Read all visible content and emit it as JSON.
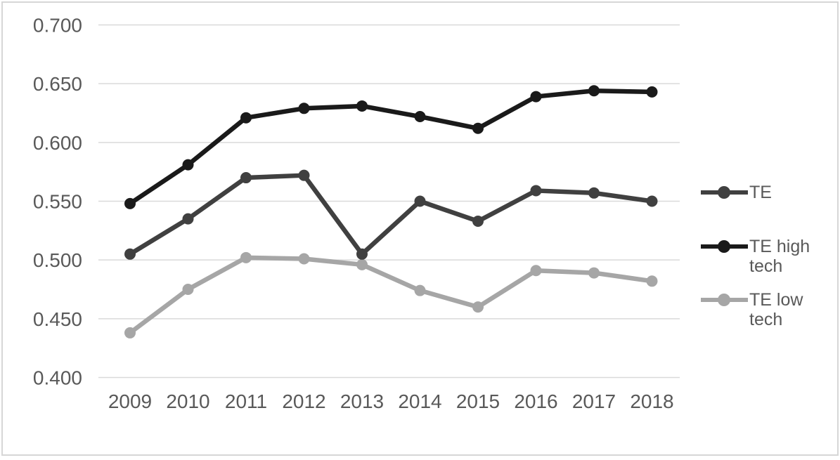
{
  "page": {
    "background_color": "#ffffff",
    "frame_border_color": "#d6d6d6"
  },
  "chart_data": {
    "type": "line",
    "title": "",
    "xlabel": "",
    "ylabel": "",
    "categories": [
      "2009",
      "2010",
      "2011",
      "2012",
      "2013",
      "2014",
      "2015",
      "2016",
      "2017",
      "2018"
    ],
    "series": [
      {
        "name": "TE",
        "color": "#404040",
        "values": [
          0.505,
          0.535,
          0.57,
          0.572,
          0.505,
          0.55,
          0.533,
          0.559,
          0.557,
          0.55
        ]
      },
      {
        "name": "TE high tech",
        "color": "#1a1a1a",
        "values": [
          0.548,
          0.581,
          0.621,
          0.629,
          0.631,
          0.622,
          0.612,
          0.639,
          0.644,
          0.643
        ]
      },
      {
        "name": "TE low tech",
        "color": "#a6a6a6",
        "values": [
          0.438,
          0.475,
          0.502,
          0.501,
          0.496,
          0.474,
          0.46,
          0.491,
          0.489,
          0.482
        ]
      }
    ],
    "ylim": [
      0.4,
      0.7
    ],
    "ytick_step": 0.05,
    "ytick_labels": [
      "0.700",
      "0.650",
      "0.600",
      "0.550",
      "0.500",
      "0.450",
      "0.400"
    ],
    "grid": true,
    "gridline_color": "#d9d9d9",
    "tick_label_color": "#595959",
    "legend_position": "right",
    "marker": "circle",
    "draw_order": [
      2,
      0,
      1
    ]
  }
}
